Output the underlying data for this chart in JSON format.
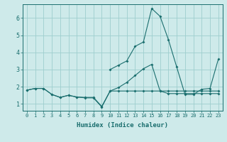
{
  "xlabel": "Humidex (Indice chaleur)",
  "bg_color": "#ceeaea",
  "grid_color": "#9ecece",
  "line_color": "#1a6e6e",
  "xlim": [
    -0.5,
    23.5
  ],
  "ylim": [
    0.6,
    6.8
  ],
  "yticks": [
    1,
    2,
    3,
    4,
    5,
    6
  ],
  "xticks": [
    0,
    1,
    2,
    3,
    4,
    5,
    6,
    7,
    8,
    9,
    10,
    11,
    12,
    13,
    14,
    15,
    16,
    17,
    18,
    19,
    20,
    21,
    22,
    23
  ],
  "line1_x": [
    0,
    1,
    2,
    3,
    4,
    5,
    6,
    7,
    8,
    9,
    10,
    11,
    12,
    13,
    14,
    15,
    16,
    17,
    18,
    19,
    20,
    21,
    22,
    23
  ],
  "line1_y": [
    1.8,
    1.9,
    1.9,
    1.55,
    1.38,
    1.5,
    1.4,
    1.38,
    1.38,
    0.85,
    1.75,
    1.75,
    1.75,
    1.75,
    1.75,
    1.75,
    1.75,
    1.75,
    1.75,
    1.75,
    1.75,
    1.75,
    1.75,
    1.75
  ],
  "line2_x": [
    0,
    1,
    2,
    3,
    4,
    5,
    6,
    7,
    8,
    9,
    10,
    11,
    12,
    13,
    14,
    15,
    16,
    17,
    18,
    19,
    20,
    21,
    22,
    23
  ],
  "line2_y": [
    1.8,
    1.9,
    1.9,
    1.55,
    1.38,
    1.5,
    1.4,
    1.35,
    1.35,
    0.82,
    1.75,
    1.95,
    2.25,
    2.65,
    3.05,
    3.3,
    1.75,
    1.6,
    1.6,
    1.6,
    1.6,
    1.6,
    1.6,
    1.6
  ],
  "line3_x": [
    10,
    11,
    12,
    13,
    14,
    15,
    16,
    17,
    18,
    19,
    20,
    21,
    22,
    23
  ],
  "line3_y": [
    3.0,
    3.25,
    3.5,
    4.35,
    4.6,
    6.55,
    6.1,
    4.75,
    3.15,
    1.55,
    1.55,
    1.85,
    1.9,
    3.6
  ]
}
